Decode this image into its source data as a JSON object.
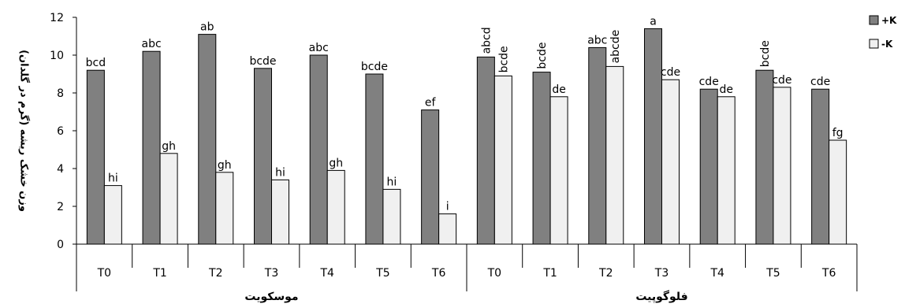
{
  "chart_data": {
    "type": "bar",
    "ylabel": "وزن خشک ریشه (گرم در گلدان)",
    "ylim": [
      0,
      12
    ],
    "yticks": [
      "0",
      "2",
      "4",
      "6",
      "8",
      "10",
      "12"
    ],
    "grid": false,
    "legend_position": "top-right",
    "groups": [
      {
        "label": "موسکویت",
        "categories": [
          "T0",
          "T1",
          "T2",
          "T3",
          "T4",
          "T5",
          "T6"
        ],
        "series": [
          {
            "name": "+K",
            "color": "#808080",
            "values": [
              9.2,
              10.2,
              11.1,
              9.3,
              10.0,
              9.0,
              7.1
            ],
            "labels": [
              "bcd",
              "abc",
              "ab",
              "bcde",
              "abc",
              "bcde",
              "ef"
            ]
          },
          {
            "name": "-K",
            "color": "#f0f0f0",
            "values": [
              3.1,
              4.8,
              3.8,
              3.4,
              3.9,
              2.9,
              1.6
            ],
            "labels": [
              "hi",
              "gh",
              "gh",
              "hi",
              "gh",
              "hi",
              "i"
            ]
          }
        ]
      },
      {
        "label": "فلوگوپیت",
        "categories": [
          "T0",
          "T1",
          "T2",
          "T3",
          "T4",
          "T5",
          "T6"
        ],
        "series": [
          {
            "name": "+K",
            "color": "#808080",
            "values": [
              9.9,
              9.1,
              10.4,
              11.4,
              8.2,
              9.2,
              8.2
            ],
            "labels": [
              "abcd",
              "bcde",
              "abc",
              "a",
              "cde",
              "bcde",
              "cde"
            ]
          },
          {
            "name": "-K",
            "color": "#f0f0f0",
            "values": [
              8.9,
              7.8,
              9.4,
              8.7,
              7.8,
              8.3,
              5.5
            ],
            "labels": [
              "bcde",
              "de",
              "abcde",
              "cde",
              "de",
              "cde",
              "fg"
            ]
          }
        ]
      }
    ],
    "legend": [
      {
        "name": "+K",
        "color": "#808080"
      },
      {
        "name": "-K",
        "color": "#f0f0f0"
      }
    ]
  }
}
